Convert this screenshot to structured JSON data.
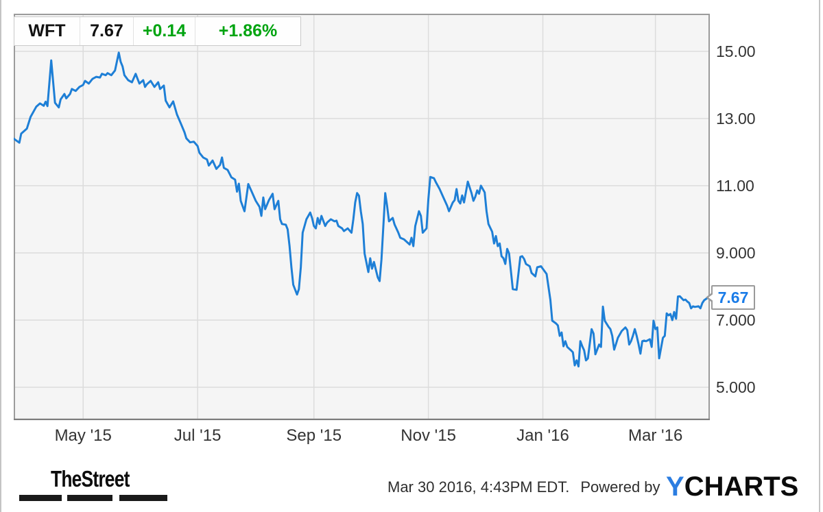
{
  "header": {
    "ticker": "WFT",
    "price": "7.67",
    "change": "+0.14",
    "change_pct": "+1.86%"
  },
  "colors": {
    "line": "#1e7fd6",
    "callout_text": "#1a7ce8",
    "positive_green": "#00a410",
    "plot_bg": "#f5f5f5",
    "grid": "#dcdcdc",
    "plot_border": "#9b9b9b",
    "axis_text": "#333333",
    "ycharts_blue": "#2b7de1"
  },
  "footer": {
    "left_logo": "TheStreet",
    "timestamp": "Mar 30 2016, 4:43PM EDT.",
    "powered_by": "Powered by",
    "right_logo_y": "Y",
    "right_logo_rest": "CHARTS"
  },
  "chart_data": {
    "type": "line",
    "title": "WFT 1-year price chart",
    "x_unit": "days since 2015-03-25",
    "x_start_date": "2015-03-25",
    "x_end_date": "2016-03-30",
    "xlim_days": [
      0,
      371
    ],
    "ylim": [
      4.02,
      16.12
    ],
    "grid": true,
    "legend": "none",
    "last_price": 7.67,
    "last_price_label": "7.67",
    "x_ticks": [
      {
        "label": "May '15",
        "day": 37
      },
      {
        "label": "Jul '15",
        "day": 98
      },
      {
        "label": "Sep '15",
        "day": 160
      },
      {
        "label": "Nov '15",
        "day": 221
      },
      {
        "label": "Jan '16",
        "day": 282
      },
      {
        "label": "Mar '16",
        "day": 342
      }
    ],
    "y_ticks": [
      {
        "label": "15.00",
        "value": 15
      },
      {
        "label": "13.00",
        "value": 13
      },
      {
        "label": "11.00",
        "value": 11
      },
      {
        "label": "9.000",
        "value": 9
      },
      {
        "label": "7.000",
        "value": 7
      },
      {
        "label": "5.000",
        "value": 5
      }
    ],
    "series": [
      {
        "name": "WFT",
        "points": [
          [
            0,
            12.4
          ],
          [
            3,
            12.28
          ],
          [
            4,
            12.55
          ],
          [
            7,
            12.7
          ],
          [
            9,
            13.05
          ],
          [
            12,
            13.35
          ],
          [
            14,
            13.45
          ],
          [
            16,
            13.38
          ],
          [
            17,
            13.5
          ],
          [
            18,
            13.37
          ],
          [
            20,
            14.73
          ],
          [
            22,
            13.47
          ],
          [
            24,
            13.33
          ],
          [
            25,
            13.57
          ],
          [
            27,
            13.73
          ],
          [
            28,
            13.6
          ],
          [
            30,
            13.73
          ],
          [
            31,
            13.88
          ],
          [
            33,
            13.82
          ],
          [
            35,
            13.94
          ],
          [
            37,
            14.0
          ],
          [
            38,
            14.12
          ],
          [
            40,
            14.04
          ],
          [
            42,
            14.18
          ],
          [
            44,
            14.24
          ],
          [
            46,
            14.22
          ],
          [
            47,
            14.33
          ],
          [
            49,
            14.29
          ],
          [
            50,
            14.35
          ],
          [
            52,
            14.29
          ],
          [
            54,
            14.43
          ],
          [
            56,
            14.96
          ],
          [
            57,
            14.69
          ],
          [
            58,
            14.55
          ],
          [
            59,
            14.29
          ],
          [
            61,
            14.14
          ],
          [
            63,
            14.08
          ],
          [
            65,
            14.33
          ],
          [
            66,
            14.18
          ],
          [
            67,
            14.04
          ],
          [
            69,
            14.14
          ],
          [
            70,
            13.94
          ],
          [
            71,
            14.02
          ],
          [
            73,
            14.12
          ],
          [
            75,
            13.94
          ],
          [
            77,
            14.08
          ],
          [
            78,
            13.88
          ],
          [
            80,
            13.98
          ],
          [
            81,
            13.53
          ],
          [
            83,
            13.33
          ],
          [
            85,
            13.51
          ],
          [
            87,
            13.12
          ],
          [
            89,
            12.86
          ],
          [
            91,
            12.59
          ],
          [
            92,
            12.41
          ],
          [
            94,
            12.29
          ],
          [
            96,
            12.31
          ],
          [
            98,
            12.18
          ],
          [
            99,
            11.98
          ],
          [
            101,
            11.84
          ],
          [
            103,
            11.78
          ],
          [
            104,
            11.6
          ],
          [
            106,
            11.75
          ],
          [
            108,
            11.5
          ],
          [
            110,
            11.62
          ],
          [
            111,
            11.84
          ],
          [
            112,
            11.53
          ],
          [
            114,
            11.47
          ],
          [
            116,
            11.25
          ],
          [
            118,
            11.18
          ],
          [
            119,
            10.82
          ],
          [
            120,
            11.06
          ],
          [
            121,
            10.55
          ],
          [
            123,
            10.24
          ],
          [
            125,
            11.05
          ],
          [
            127,
            10.8
          ],
          [
            129,
            10.55
          ],
          [
            131,
            10.37
          ],
          [
            132,
            10.1
          ],
          [
            133,
            10.65
          ],
          [
            134,
            10.3
          ],
          [
            136,
            10.57
          ],
          [
            138,
            10.76
          ],
          [
            139,
            10.3
          ],
          [
            141,
            10.55
          ],
          [
            142,
            10.0
          ],
          [
            143,
            9.86
          ],
          [
            145,
            9.84
          ],
          [
            146,
            9.7
          ],
          [
            147,
            9.2
          ],
          [
            148,
            8.57
          ],
          [
            149,
            8.05
          ],
          [
            151,
            7.76
          ],
          [
            152,
            7.92
          ],
          [
            153,
            8.57
          ],
          [
            154,
            9.6
          ],
          [
            156,
            10.0
          ],
          [
            158,
            10.2
          ],
          [
            159,
            10.04
          ],
          [
            160,
            9.8
          ],
          [
            161,
            9.73
          ],
          [
            162,
            10.04
          ],
          [
            163,
            9.86
          ],
          [
            164,
            10.1
          ],
          [
            166,
            9.8
          ],
          [
            167,
            9.9
          ],
          [
            169,
            10.0
          ],
          [
            171,
            9.94
          ],
          [
            172,
            9.96
          ],
          [
            173,
            9.8
          ],
          [
            175,
            9.73
          ],
          [
            176,
            9.65
          ],
          [
            178,
            9.73
          ],
          [
            180,
            9.6
          ],
          [
            181,
            10.0
          ],
          [
            182,
            10.5
          ],
          [
            183,
            10.78
          ],
          [
            184,
            10.7
          ],
          [
            185,
            10.24
          ],
          [
            186,
            9.86
          ],
          [
            187,
            8.98
          ],
          [
            189,
            8.43
          ],
          [
            190,
            8.84
          ],
          [
            191,
            8.53
          ],
          [
            192,
            8.73
          ],
          [
            193,
            8.5
          ],
          [
            194,
            8.27
          ],
          [
            195,
            8.16
          ],
          [
            196,
            8.8
          ],
          [
            198,
            10.78
          ],
          [
            199,
            10.4
          ],
          [
            200,
            9.94
          ],
          [
            202,
            10.04
          ],
          [
            203,
            9.84
          ],
          [
            205,
            9.6
          ],
          [
            206,
            9.45
          ],
          [
            208,
            9.4
          ],
          [
            211,
            9.25
          ],
          [
            212,
            9.45
          ],
          [
            213,
            9.2
          ],
          [
            214,
            9.8
          ],
          [
            216,
            10.24
          ],
          [
            217,
            10.1
          ],
          [
            218,
            9.6
          ],
          [
            220,
            9.73
          ],
          [
            221,
            10.6
          ],
          [
            222,
            11.26
          ],
          [
            224,
            11.22
          ],
          [
            225,
            11.1
          ],
          [
            226,
            11.0
          ],
          [
            227,
            10.9
          ],
          [
            229,
            10.65
          ],
          [
            231,
            10.4
          ],
          [
            232,
            10.24
          ],
          [
            234,
            10.5
          ],
          [
            235,
            10.57
          ],
          [
            236,
            10.9
          ],
          [
            237,
            10.55
          ],
          [
            238,
            10.47
          ],
          [
            239,
            10.71
          ],
          [
            240,
            10.5
          ],
          [
            242,
            11.12
          ],
          [
            244,
            10.78
          ],
          [
            245,
            10.55
          ],
          [
            246,
            10.67
          ],
          [
            247,
            10.86
          ],
          [
            248,
            10.76
          ],
          [
            249,
            11.0
          ],
          [
            251,
            10.8
          ],
          [
            252,
            10.24
          ],
          [
            253,
            9.86
          ],
          [
            255,
            9.63
          ],
          [
            256,
            9.28
          ],
          [
            257,
            9.5
          ],
          [
            258,
            9.2
          ],
          [
            259,
            9.28
          ],
          [
            260,
            8.9
          ],
          [
            261,
            8.84
          ],
          [
            262,
            8.67
          ],
          [
            263,
            9.12
          ],
          [
            264,
            8.98
          ],
          [
            266,
            7.92
          ],
          [
            268,
            7.9
          ],
          [
            270,
            8.88
          ],
          [
            271,
            8.9
          ],
          [
            272,
            8.82
          ],
          [
            273,
            8.67
          ],
          [
            275,
            8.6
          ],
          [
            276,
            8.4
          ],
          [
            278,
            8.3
          ],
          [
            279,
            8.57
          ],
          [
            281,
            8.6
          ],
          [
            284,
            8.37
          ],
          [
            286,
            7.6
          ],
          [
            287,
            6.98
          ],
          [
            289,
            6.9
          ],
          [
            290,
            6.84
          ],
          [
            291,
            6.53
          ],
          [
            292,
            6.63
          ],
          [
            293,
            6.22
          ],
          [
            294,
            6.37
          ],
          [
            295,
            6.2
          ],
          [
            297,
            6.1
          ],
          [
            298,
            6.04
          ],
          [
            299,
            5.65
          ],
          [
            300,
            5.8
          ],
          [
            301,
            5.62
          ],
          [
            302,
            6.37
          ],
          [
            303,
            6.22
          ],
          [
            304,
            6.1
          ],
          [
            305,
            5.8
          ],
          [
            306,
            5.86
          ],
          [
            308,
            6.73
          ],
          [
            309,
            6.6
          ],
          [
            310,
            5.98
          ],
          [
            312,
            6.27
          ],
          [
            313,
            6.2
          ],
          [
            314,
            7.4
          ],
          [
            315,
            6.98
          ],
          [
            317,
            6.8
          ],
          [
            318,
            6.73
          ],
          [
            319,
            6.53
          ],
          [
            320,
            6.12
          ],
          [
            321,
            6.29
          ],
          [
            322,
            6.47
          ],
          [
            323,
            6.57
          ],
          [
            324,
            6.67
          ],
          [
            326,
            6.78
          ],
          [
            327,
            6.7
          ],
          [
            328,
            6.27
          ],
          [
            329,
            6.37
          ],
          [
            330,
            6.53
          ],
          [
            331,
            6.73
          ],
          [
            332,
            6.53
          ],
          [
            333,
            6.29
          ],
          [
            334,
            6.0
          ],
          [
            335,
            6.37
          ],
          [
            336,
            6.39
          ],
          [
            337,
            6.37
          ],
          [
            339,
            6.43
          ],
          [
            340,
            6.2
          ],
          [
            341,
            6.98
          ],
          [
            342,
            6.73
          ],
          [
            343,
            6.78
          ],
          [
            344,
            5.86
          ],
          [
            346,
            6.47
          ],
          [
            347,
            6.53
          ],
          [
            348,
            7.2
          ],
          [
            349,
            7.14
          ],
          [
            350,
            7.18
          ],
          [
            351,
            7.0
          ],
          [
            352,
            7.24
          ],
          [
            353,
            7.04
          ],
          [
            354,
            7.7
          ],
          [
            355,
            7.71
          ],
          [
            357,
            7.59
          ],
          [
            358,
            7.61
          ],
          [
            359,
            7.55
          ],
          [
            360,
            7.51
          ],
          [
            361,
            7.35
          ],
          [
            362,
            7.41
          ],
          [
            363,
            7.39
          ],
          [
            365,
            7.41
          ],
          [
            366,
            7.35
          ],
          [
            367,
            7.51
          ],
          [
            368,
            7.59
          ],
          [
            370,
            7.67
          ]
        ]
      }
    ]
  }
}
